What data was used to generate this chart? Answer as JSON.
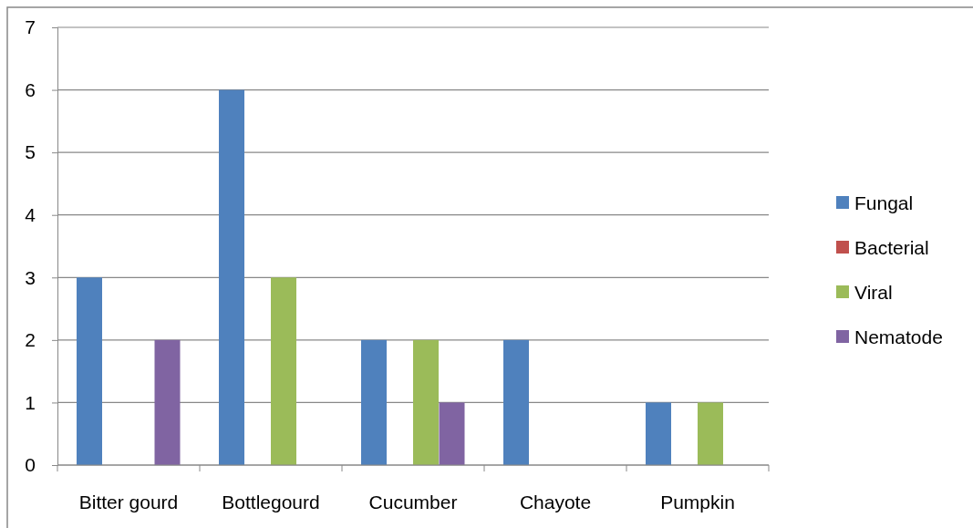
{
  "chart_data": {
    "type": "bar",
    "categories": [
      "Bitter gourd",
      "Bottlegourd",
      "Cucumber",
      "Chayote",
      "Pumpkin"
    ],
    "series": [
      {
        "name": "Fungal",
        "color": "#4f81bd",
        "values": [
          3,
          6,
          2,
          2,
          1
        ]
      },
      {
        "name": "Bacterial",
        "color": "#c0504d",
        "values": [
          0,
          0,
          0,
          0,
          0
        ]
      },
      {
        "name": "Viral",
        "color": "#9bbb59",
        "values": [
          0,
          3,
          2,
          0,
          1
        ]
      },
      {
        "name": "Nematode",
        "color": "#8064a2",
        "values": [
          2,
          0,
          1,
          0,
          0
        ]
      }
    ],
    "ylim": [
      0,
      7
    ],
    "yticks": [
      0,
      1,
      2,
      3,
      4,
      5,
      6,
      7
    ],
    "grid": "y",
    "legend": "right"
  }
}
